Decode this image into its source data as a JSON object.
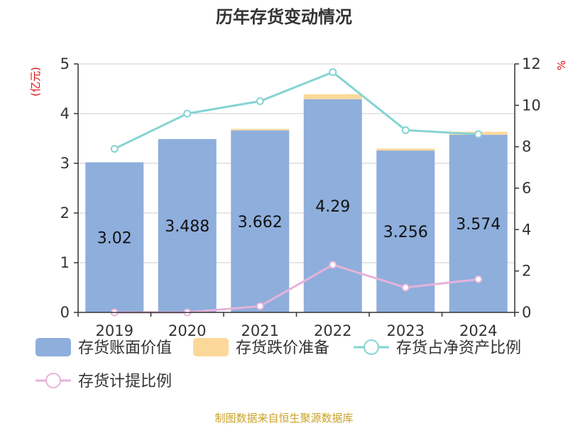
{
  "chart_data": {
    "type": "bar",
    "title": "历年存货变动情况",
    "left_unit": "(亿元)",
    "right_unit": "%",
    "categories": [
      "2019",
      "2020",
      "2021",
      "2022",
      "2023",
      "2024"
    ],
    "ylim_left": [
      0,
      5
    ],
    "yticks_left": [
      0,
      1,
      2,
      3,
      4,
      5
    ],
    "ylim_right": [
      0,
      12
    ],
    "yticks_right": [
      0,
      2,
      4,
      6,
      8,
      10,
      12
    ],
    "grid": true,
    "legend_position": "bottom",
    "series": [
      {
        "name": "存货账面价值",
        "kind": "bar",
        "axis": "left",
        "color": "#8eaedc",
        "values": [
          3.02,
          3.488,
          3.662,
          4.29,
          3.256,
          3.574
        ],
        "labels": [
          "3.02",
          "3.488",
          "3.662",
          "4.29",
          "3.256",
          "3.574"
        ]
      },
      {
        "name": "存货跌价准备",
        "kind": "bar-stacked",
        "axis": "left",
        "color": "#fbd89a",
        "values": [
          0.0,
          0.0,
          0.03,
          0.1,
          0.04,
          0.06
        ]
      },
      {
        "name": "存货占净资产比例",
        "kind": "line",
        "axis": "right",
        "color": "#86d3d3",
        "values": [
          7.9,
          9.6,
          10.2,
          11.6,
          8.8,
          8.6
        ]
      },
      {
        "name": "存货计提比例",
        "kind": "line",
        "axis": "right",
        "color": "#e6b3da",
        "values": [
          0.0,
          0.0,
          0.3,
          2.3,
          1.2,
          1.6
        ]
      }
    ],
    "source": "制图数据来自恒生聚源数据库"
  }
}
